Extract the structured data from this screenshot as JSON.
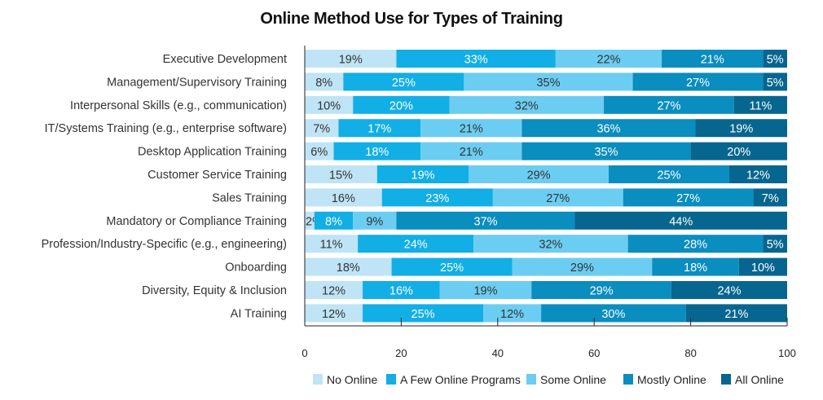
{
  "chart_data": {
    "type": "bar",
    "orientation": "horizontal",
    "stacked": true,
    "title": "Online Method Use for Types of Training",
    "xlabel": "",
    "ylabel": "",
    "xlim": [
      0,
      100
    ],
    "xticks": [
      0,
      20,
      40,
      60,
      80,
      100
    ],
    "grid": false,
    "legend_position": "bottom",
    "value_suffix": "%",
    "categories": [
      "Executive Development",
      "Management/Supervisory Training",
      "Interpersonal Skills (e.g., communication)",
      "IT/Systems Training (e.g., enterprise software)",
      "Desktop Application Training",
      "Customer Service Training",
      "Sales Training",
      "Mandatory or Compliance Training",
      "Profession/Industry-Specific (e.g., engineering)",
      "Onboarding",
      "Diversity, Equity & Inclusion",
      "AI Training"
    ],
    "series": [
      {
        "name": "No Online",
        "color": "#bfe4f6",
        "text_color": "#333333",
        "values": [
          19,
          8,
          10,
          7,
          6,
          15,
          16,
          2,
          11,
          18,
          12,
          12
        ]
      },
      {
        "name": "A Few Online Programs",
        "color": "#12aee6",
        "text_color": "#ffffff",
        "values": [
          33,
          25,
          20,
          17,
          18,
          19,
          23,
          8,
          24,
          25,
          16,
          25
        ]
      },
      {
        "name": "Some Online",
        "color": "#6ccdf2",
        "text_color": "#333333",
        "values": [
          22,
          35,
          32,
          21,
          21,
          29,
          27,
          9,
          32,
          29,
          19,
          12
        ]
      },
      {
        "name": "Mostly Online",
        "color": "#0a8dbf",
        "text_color": "#ffffff",
        "values": [
          21,
          27,
          27,
          36,
          35,
          25,
          27,
          37,
          28,
          18,
          29,
          30
        ]
      },
      {
        "name": "All Online",
        "color": "#07668f",
        "text_color": "#ffffff",
        "values": [
          5,
          5,
          11,
          19,
          20,
          12,
          7,
          44,
          5,
          10,
          24,
          21
        ]
      }
    ]
  }
}
